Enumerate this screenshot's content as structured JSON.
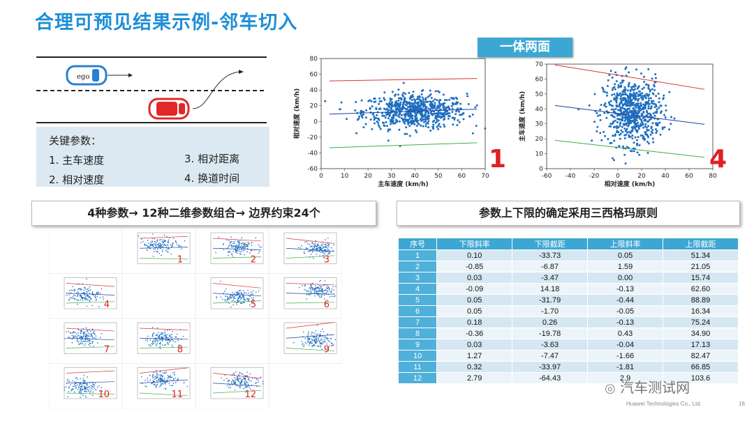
{
  "title": "合理可预见结果示例-邻车切入",
  "scenario": {
    "ego_label": "ego"
  },
  "params": {
    "heading": "关键参数：",
    "items": [
      "1. 主车速度",
      "2. 相对速度",
      "3. 相对距离",
      "4. 换道时间"
    ]
  },
  "badge": "一体两面",
  "chart_data": [
    {
      "type": "scatter",
      "id": "1",
      "xlabel": "主车速度 (km/h)",
      "ylabel": "相对速度 (km/h)",
      "xlim": [
        0,
        70
      ],
      "ylim": [
        -60,
        80
      ],
      "xticks": [
        0,
        10,
        20,
        30,
        40,
        50,
        60,
        70
      ],
      "yticks": [
        -60,
        -40,
        -20,
        0,
        20,
        40,
        60,
        80
      ],
      "lines": [
        {
          "name": "upper",
          "color": "#e03030",
          "slope": 0.05,
          "intercept": 51.34
        },
        {
          "name": "lower",
          "color": "#3cb043",
          "slope": 0.1,
          "intercept": -33.73
        },
        {
          "name": "mean",
          "color": "#2040a0",
          "slope": 0.1,
          "intercept": 9
        }
      ],
      "cloud": {
        "xmean": 40,
        "xsd": 11,
        "ymean": 13,
        "ysd": 11,
        "n": 700
      }
    },
    {
      "type": "scatter",
      "id": "4",
      "xlabel": "相对速度 (km/h)",
      "ylabel": "主车速度 (km/h)",
      "xlim": [
        -60,
        80
      ],
      "ylim": [
        0,
        70
      ],
      "xticks": [
        -60,
        -40,
        -20,
        0,
        20,
        40,
        60,
        80
      ],
      "yticks": [
        0,
        10,
        20,
        30,
        40,
        50,
        60,
        70
      ],
      "lines": [
        {
          "name": "upper",
          "color": "#e03030",
          "slope": -0.13,
          "intercept": 62.6
        },
        {
          "name": "lower",
          "color": "#3cb043",
          "slope": -0.09,
          "intercept": 14.18
        },
        {
          "name": "mean",
          "color": "#2040a0",
          "slope": -0.1,
          "intercept": 37
        }
      ],
      "cloud": {
        "xmean": 12,
        "xsd": 12,
        "ymean": 38,
        "ysd": 11,
        "n": 700
      }
    }
  ],
  "headers": {
    "left": "4种参数→ 12种二维参数组合→ 边界约束24个",
    "right": "参数上下限的确定采用三西格玛原则"
  },
  "table": {
    "columns": [
      "序号",
      "下限斜率",
      "下限截距",
      "上限斜率",
      "上限截距"
    ],
    "rows": [
      [
        "1",
        "0.10",
        "-33.73",
        "0.05",
        "51.34"
      ],
      [
        "2",
        "-0.85",
        "-6.87",
        "1.59",
        "21.05"
      ],
      [
        "3",
        "0.03",
        "-3.47",
        "0.00",
        "15.74"
      ],
      [
        "4",
        "-0.09",
        "14.18",
        "-0.13",
        "62.60"
      ],
      [
        "5",
        "0.05",
        "-31.79",
        "-0.44",
        "88.89"
      ],
      [
        "6",
        "0.05",
        "-1.70",
        "-0.05",
        "16.34"
      ],
      [
        "7",
        "0.18",
        "0.26",
        "-0.13",
        "75.24"
      ],
      [
        "8",
        "-0.36",
        "-19.78",
        "0.43",
        "34.90"
      ],
      [
        "9",
        "0.03",
        "-3.63",
        "-0.04",
        "17.13"
      ],
      [
        "10",
        "1.27",
        "-7.47",
        "-1.66",
        "82.47"
      ],
      [
        "11",
        "0.32",
        "-33.97",
        "-1.81",
        "66.85"
      ],
      [
        "12",
        "2.79",
        "-64.43",
        "2.9",
        "103.6"
      ]
    ]
  },
  "thumbnails": [
    "1",
    "2",
    "3",
    "4",
    "5",
    "6",
    "7",
    "8",
    "9",
    "10",
    "11",
    "12"
  ],
  "watermark": "汽车测试网",
  "footer": "Huawei Technologies Co., Ltd.",
  "page_number": "16",
  "colors": {
    "accent": "#1f8fd6",
    "header_blue": "#3da7d4",
    "point": "#1f6fc0",
    "label_red": "#e02020"
  }
}
